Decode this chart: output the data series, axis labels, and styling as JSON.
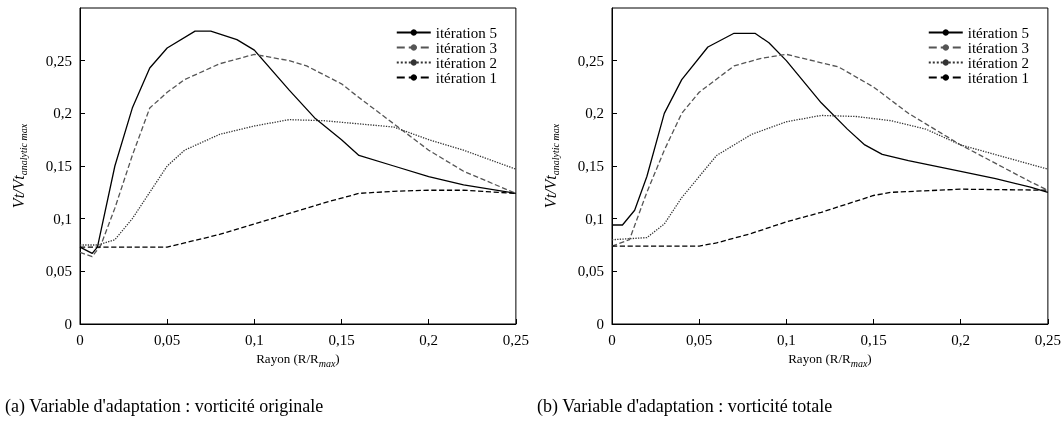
{
  "chart_data": [
    {
      "type": "line",
      "title": "(a) Variable d'adaptation : vorticité originale",
      "xlabel": "Rayon (R/R$_{max}$)",
      "ylabel": "Vt/Vt$_{analytic max}$",
      "xlim": [
        0,
        0.25
      ],
      "xticks": [
        0,
        {
          "value": 0.05,
          "label": "0,05"
        },
        {
          "value": 0.1,
          "label": "0,1"
        },
        {
          "value": 0.15,
          "label": "0,15"
        },
        {
          "value": 0.2,
          "label": "0,2"
        },
        {
          "value": 0.25,
          "label": "0,25"
        }
      ],
      "ylim": [
        0,
        0.3
      ],
      "yticks": [
        0,
        {
          "value": 0.05,
          "label": "0,05"
        },
        {
          "value": 0.1,
          "label": "0,1"
        },
        {
          "value": 0.15,
          "label": "0,15"
        },
        {
          "value": 0.2,
          "label": "0,2"
        },
        {
          "value": 0.25,
          "label": "0,25"
        }
      ],
      "grid": false,
      "legend": "top right",
      "marker": "none",
      "series": [
        {
          "name": "itération 5",
          "color": "#000000",
          "line_style": "solid",
          "x": [
            0,
            0.007,
            0.01,
            0.02,
            0.03,
            0.04,
            0.05,
            0.066,
            0.075,
            0.09,
            0.1,
            0.12,
            0.135,
            0.15,
            0.16,
            0.18,
            0.2,
            0.22,
            0.25
          ],
          "values": [
            0.073,
            0.067,
            0.073,
            0.15,
            0.205,
            0.243,
            0.262,
            0.278,
            0.278,
            0.27,
            0.26,
            0.222,
            0.195,
            0.175,
            0.16,
            0.15,
            0.14,
            0.132,
            0.124
          ]
        },
        {
          "name": "itération 3",
          "color": "#555555",
          "line_style": "dashed",
          "x": [
            0,
            0.007,
            0.012,
            0.02,
            0.03,
            0.04,
            0.05,
            0.06,
            0.08,
            0.1,
            0.12,
            0.13,
            0.15,
            0.16,
            0.18,
            0.2,
            0.22,
            0.25
          ],
          "values": [
            0.068,
            0.064,
            0.075,
            0.11,
            0.16,
            0.205,
            0.22,
            0.232,
            0.247,
            0.256,
            0.25,
            0.245,
            0.228,
            0.215,
            0.19,
            0.165,
            0.145,
            0.124
          ]
        },
        {
          "name": "itération 2",
          "color": "#333333",
          "line_style": "dotted",
          "x": [
            0,
            0.01,
            0.02,
            0.03,
            0.04,
            0.05,
            0.06,
            0.08,
            0.1,
            0.12,
            0.14,
            0.16,
            0.18,
            0.2,
            0.22,
            0.25
          ],
          "values": [
            0.075,
            0.075,
            0.08,
            0.1,
            0.125,
            0.15,
            0.165,
            0.18,
            0.188,
            0.194,
            0.193,
            0.19,
            0.187,
            0.175,
            0.165,
            0.147
          ]
        },
        {
          "name": "itération 1",
          "color": "#000000",
          "line_style": "dashed",
          "x": [
            0,
            0.05,
            0.06,
            0.08,
            0.1,
            0.12,
            0.14,
            0.16,
            0.18,
            0.2,
            0.22,
            0.25
          ],
          "values": [
            0.073,
            0.073,
            0.077,
            0.085,
            0.095,
            0.105,
            0.115,
            0.124,
            0.126,
            0.127,
            0.127,
            0.124
          ]
        }
      ]
    },
    {
      "type": "line",
      "title": "(b) Variable d'adaptation : vorticité totale",
      "xlabel": "Rayon (R/R$_{max}$)",
      "ylabel": "Vt/Vt$_{analytic max}$",
      "xlim": [
        0,
        0.25
      ],
      "xticks": [
        0,
        {
          "value": 0.05,
          "label": "0,05"
        },
        {
          "value": 0.1,
          "label": "0,1"
        },
        {
          "value": 0.15,
          "label": "0,15"
        },
        {
          "value": 0.2,
          "label": "0,2"
        },
        {
          "value": 0.25,
          "label": "0,25"
        }
      ],
      "ylim": [
        0,
        0.3
      ],
      "yticks": [
        0,
        {
          "value": 0.05,
          "label": "0,05"
        },
        {
          "value": 0.1,
          "label": "0,1"
        },
        {
          "value": 0.15,
          "label": "0,15"
        },
        {
          "value": 0.2,
          "label": "0,2"
        },
        {
          "value": 0.25,
          "label": "0,25"
        }
      ],
      "grid": false,
      "legend": "top right",
      "marker": "none",
      "series": [
        {
          "name": "itération 5",
          "color": "#000000",
          "line_style": "solid",
          "x": [
            0,
            0.006,
            0.013,
            0.02,
            0.03,
            0.04,
            0.055,
            0.07,
            0.082,
            0.09,
            0.1,
            0.12,
            0.135,
            0.145,
            0.155,
            0.17,
            0.2,
            0.22,
            0.24,
            0.25
          ],
          "values": [
            0.094,
            0.094,
            0.108,
            0.14,
            0.2,
            0.232,
            0.263,
            0.276,
            0.276,
            0.267,
            0.25,
            0.21,
            0.185,
            0.17,
            0.161,
            0.155,
            0.145,
            0.138,
            0.13,
            0.125
          ]
        },
        {
          "name": "itération 3",
          "color": "#555555",
          "line_style": "dashed",
          "x": [
            0,
            0.01,
            0.02,
            0.03,
            0.04,
            0.05,
            0.07,
            0.085,
            0.1,
            0.13,
            0.15,
            0.17,
            0.2,
            0.24,
            0.25
          ],
          "values": [
            0.074,
            0.08,
            0.125,
            0.165,
            0.2,
            0.22,
            0.245,
            0.252,
            0.256,
            0.244,
            0.225,
            0.2,
            0.17,
            0.135,
            0.127
          ]
        },
        {
          "name": "itération 2",
          "color": "#333333",
          "line_style": "dotted",
          "x": [
            0,
            0.02,
            0.03,
            0.04,
            0.05,
            0.06,
            0.08,
            0.1,
            0.12,
            0.14,
            0.16,
            0.18,
            0.2,
            0.25
          ],
          "values": [
            0.08,
            0.082,
            0.095,
            0.12,
            0.14,
            0.16,
            0.18,
            0.192,
            0.198,
            0.197,
            0.193,
            0.185,
            0.17,
            0.147
          ]
        },
        {
          "name": "itération 1",
          "color": "#000000",
          "line_style": "dashed",
          "x": [
            0,
            0.05,
            0.06,
            0.08,
            0.1,
            0.12,
            0.15,
            0.16,
            0.2,
            0.25
          ],
          "values": [
            0.074,
            0.074,
            0.077,
            0.086,
            0.097,
            0.106,
            0.122,
            0.125,
            0.128,
            0.127
          ]
        }
      ]
    }
  ]
}
